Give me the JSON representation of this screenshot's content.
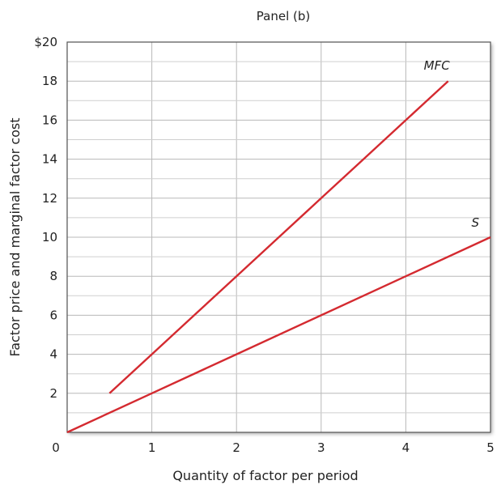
{
  "chart_data": {
    "type": "line",
    "title": "Panel (b)",
    "xlabel": "Quantity of factor per period",
    "ylabel": "Factor price and marginal factor cost",
    "xlim": [
      0,
      5
    ],
    "ylim": [
      0,
      20
    ],
    "x_ticks": [
      {
        "value": 0,
        "label": "0"
      },
      {
        "value": 1,
        "label": "1"
      },
      {
        "value": 2,
        "label": "2"
      },
      {
        "value": 3,
        "label": "3"
      },
      {
        "value": 4,
        "label": "4"
      },
      {
        "value": 5,
        "label": "5"
      }
    ],
    "y_ticks": [
      {
        "value": 2,
        "label": "2"
      },
      {
        "value": 4,
        "label": "4"
      },
      {
        "value": 6,
        "label": "6"
      },
      {
        "value": 8,
        "label": "8"
      },
      {
        "value": 10,
        "label": "10"
      },
      {
        "value": 12,
        "label": "12"
      },
      {
        "value": 14,
        "label": "14"
      },
      {
        "value": 16,
        "label": "16"
      },
      {
        "value": 18,
        "label": "18"
      },
      {
        "value": 20,
        "label": "$20"
      }
    ],
    "grid": true,
    "series": [
      {
        "name": "MFC",
        "color": "#d42a30",
        "x": [
          0.5,
          1,
          1.5,
          2,
          2.5,
          3,
          3.5,
          4,
          4.5
        ],
        "y": [
          2,
          4,
          6,
          8,
          10,
          12,
          14,
          16,
          18
        ]
      },
      {
        "name": "S",
        "color": "#d42a30",
        "x": [
          0,
          1,
          2,
          3,
          4,
          5
        ],
        "y": [
          0,
          2,
          4,
          6,
          8,
          10
        ]
      }
    ]
  }
}
